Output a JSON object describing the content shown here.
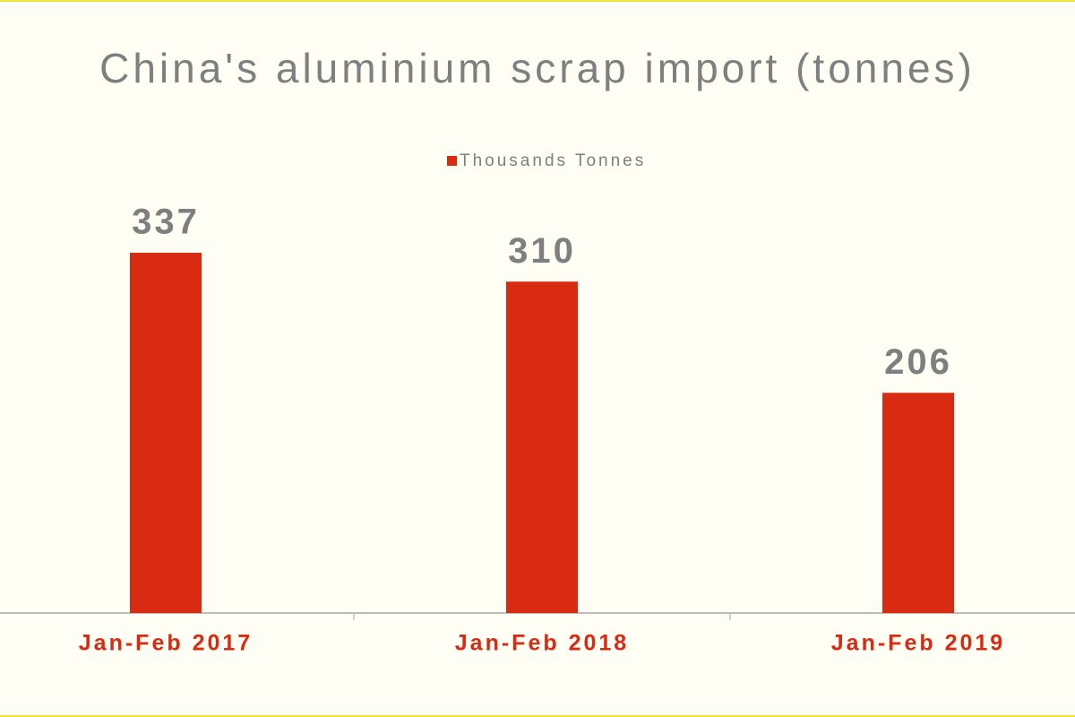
{
  "chart_data": {
    "type": "bar",
    "title": "China's aluminium scrap import (tonnes)",
    "categories": [
      "Jan-Feb 2017",
      "Jan-Feb 2018",
      "Jan-Feb 2019"
    ],
    "series": [
      {
        "name": "Thousands Tonnes",
        "color": "#d92a12",
        "values": [
          337,
          310,
          206
        ]
      }
    ]
  }
}
